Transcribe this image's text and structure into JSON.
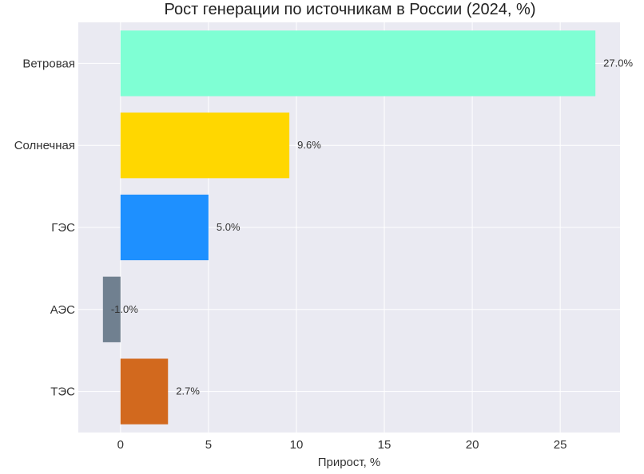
{
  "chart_data": {
    "type": "bar",
    "orientation": "horizontal",
    "title": "Рост генерации по источникам в России (2024, %)",
    "xlabel": "Прирост, %",
    "ylabel": "",
    "categories": [
      "Ветровая",
      "Солнечная",
      "ГЭС",
      "АЭС",
      "ТЭС"
    ],
    "values": [
      27.0,
      9.6,
      5.0,
      -1.0,
      2.7
    ],
    "value_labels": [
      "27.0%",
      "9.6%",
      "5.0%",
      "-1.0%",
      "2.7%"
    ],
    "colors": [
      "#7fffd4",
      "#ffd700",
      "#1e90ff",
      "#708090",
      "#d2691e"
    ],
    "xlim": [
      -2.4,
      28.4
    ],
    "xticks": [
      0,
      5,
      10,
      15,
      20,
      25
    ],
    "xtick_labels": [
      "0",
      "5",
      "10",
      "15",
      "20",
      "25"
    ],
    "grid": true,
    "plot_background": "#eaeaf2",
    "grid_color": "#ffffff"
  }
}
